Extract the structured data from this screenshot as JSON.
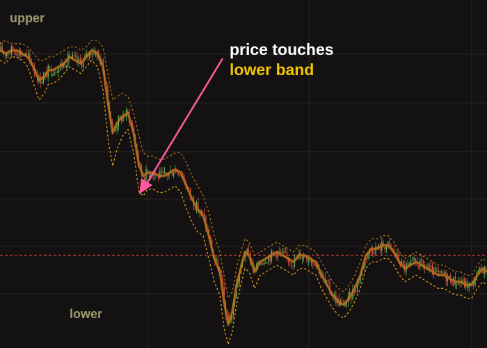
{
  "chart_data": {
    "type": "line",
    "title": "",
    "xlabel": "",
    "ylabel": "",
    "grid": true,
    "band_labels": {
      "upper": "upper",
      "lower": "lower"
    },
    "annotation": {
      "line1": "price touches",
      "line2": "lower band"
    },
    "ylim": [
      0,
      100
    ],
    "reference_level": 27,
    "series": [
      {
        "name": "",
        "role": "price",
        "x": [
          0,
          8,
          16,
          24,
          32,
          40,
          48,
          56,
          64,
          70,
          76,
          84,
          92,
          100,
          108,
          116,
          124,
          132,
          140,
          148,
          156,
          162,
          168,
          176,
          184,
          192,
          200,
          206,
          212,
          220,
          228,
          236,
          244,
          252,
          260,
          268,
          276,
          284,
          292,
          300,
          308,
          316,
          322,
          328,
          334,
          340,
          346,
          352,
          358,
          366,
          374,
          382,
          390,
          398,
          406,
          414,
          422,
          430,
          438,
          446,
          454,
          462,
          470,
          478,
          486,
          494,
          502,
          510,
          518,
          526,
          534,
          542,
          550,
          558,
          566,
          574,
          582,
          590,
          598,
          606,
          614,
          622,
          630,
          638,
          646,
          654,
          662,
          670,
          678,
          686,
          694,
          700
        ],
        "y": [
          89,
          88,
          89,
          89,
          88,
          87,
          84,
          80,
          81,
          83,
          83,
          84,
          85,
          87,
          86,
          85,
          87,
          89,
          88,
          84,
          72,
          64,
          67,
          69,
          70,
          64,
          54,
          51,
          52,
          52,
          51,
          51,
          52,
          53,
          52,
          48,
          44,
          41,
          39,
          33,
          26,
          22,
          13,
          6,
          10,
          18,
          23,
          28,
          27,
          22,
          25,
          26,
          27,
          28,
          27,
          26,
          25,
          27,
          27,
          26,
          25,
          21,
          18,
          15,
          13,
          12,
          14,
          17,
          21,
          27,
          29,
          29,
          30,
          30,
          28,
          25,
          23,
          24,
          25,
          24,
          23,
          22,
          21,
          21,
          20,
          19,
          19,
          18,
          18,
          21,
          23,
          22
        ]
      },
      {
        "name": "",
        "role": "upper band",
        "color": "#c8841e",
        "y": [
          91,
          92,
          91,
          91,
          91,
          90,
          88,
          86,
          86,
          87,
          87,
          88,
          89,
          90,
          90,
          89,
          90,
          92,
          92,
          90,
          81,
          74,
          75,
          76,
          75,
          70,
          63,
          58,
          57,
          57,
          56,
          56,
          57,
          58,
          58,
          55,
          51,
          48,
          45,
          40,
          33,
          28,
          21,
          14,
          16,
          23,
          28,
          32,
          31,
          27,
          28,
          29,
          30,
          31,
          30,
          29,
          28,
          30,
          30,
          29,
          28,
          25,
          22,
          19,
          17,
          16,
          18,
          21,
          25,
          30,
          32,
          32,
          33,
          33,
          31,
          28,
          26,
          27,
          28,
          27,
          26,
          25,
          24,
          24,
          23,
          22,
          22,
          21,
          21,
          24,
          26,
          25
        ]
      },
      {
        "name": "",
        "role": "lower band",
        "color": "#e8a020",
        "y": [
          86,
          85,
          87,
          87,
          86,
          84,
          79,
          74,
          76,
          79,
          79,
          80,
          82,
          84,
          83,
          82,
          84,
          86,
          84,
          77,
          61,
          54,
          59,
          63,
          65,
          58,
          46,
          45,
          47,
          47,
          46,
          46,
          47,
          48,
          46,
          41,
          37,
          34,
          33,
          26,
          19,
          15,
          5,
          0,
          4,
          12,
          18,
          23,
          22,
          17,
          21,
          22,
          23,
          24,
          23,
          22,
          21,
          23,
          23,
          22,
          21,
          17,
          14,
          11,
          9,
          8,
          10,
          13,
          17,
          23,
          25,
          25,
          26,
          26,
          24,
          21,
          19,
          20,
          21,
          20,
          19,
          18,
          17,
          17,
          16,
          15,
          15,
          14,
          14,
          17,
          19,
          18
        ]
      }
    ]
  },
  "colors": {
    "background": "#131111",
    "grid": "#2b2828",
    "up_candle": "#5fbf5a",
    "down_candle": "#e0523e",
    "middle_band": "#b8701c",
    "arrow": "#ff5aa0",
    "reference_line": "#e04848"
  }
}
